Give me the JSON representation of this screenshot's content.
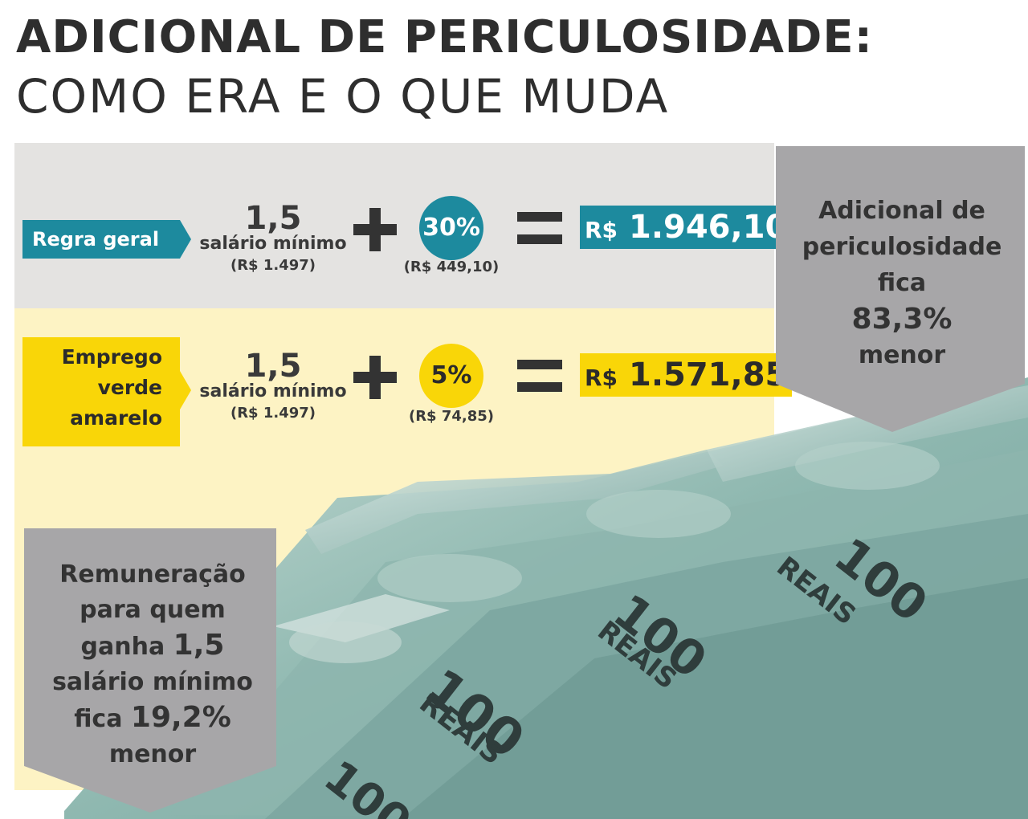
{
  "title": {
    "line1": "ADICIONAL DE PERICULOSIDADE:",
    "line2": "COMO ERA E O QUE MUDA"
  },
  "regra_geral": {
    "label": "Regra geral",
    "base_value": "1,5",
    "base_unit": "salário mínimo",
    "base_amount": "(R$ 1.497)",
    "percent": "30%",
    "percent_amount": "(R$ 449,10)",
    "result_currency": "R$",
    "result_value": "1.946,10"
  },
  "emprego_verde_amarelo": {
    "label_line1": "Emprego",
    "label_line2": "verde",
    "label_line3": "amarelo",
    "base_value": "1,5",
    "base_unit": "salário mínimo",
    "base_amount": "(R$ 1.497)",
    "percent": "5%",
    "percent_amount": "(R$ 74,85)",
    "result_currency": "R$",
    "result_value": "1.571,85"
  },
  "callout_right": {
    "line1": "Adicional de",
    "line2": "periculosidade",
    "line3": "fica",
    "line4": "83,3%",
    "line5": "menor"
  },
  "callout_left": {
    "line1": "Remuneração",
    "line2": "para quem",
    "line3a": "ganha",
    "line3b": "1,5",
    "line4": "salário mínimo",
    "line5a": "fica",
    "line5b": "19,2%",
    "line6": "menor"
  },
  "banknote_text": "100 REAIS",
  "colors": {
    "teal": "#1d8a9e",
    "yellow": "#f9d608",
    "grey_band": "#e4e3e1",
    "yellow_band": "#fdf3c4",
    "callout_grey": "#a7a6a8"
  }
}
